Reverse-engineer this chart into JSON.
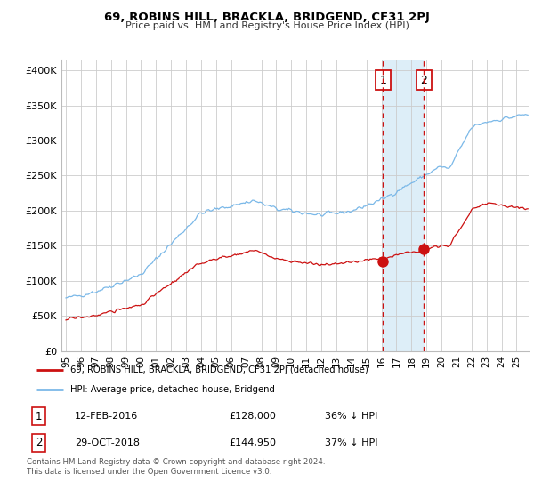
{
  "title": "69, ROBINS HILL, BRACKLA, BRIDGEND, CF31 2PJ",
  "subtitle": "Price paid vs. HM Land Registry's House Price Index (HPI)",
  "ylabel_ticks": [
    "£0",
    "£50K",
    "£100K",
    "£150K",
    "£200K",
    "£250K",
    "£300K",
    "£350K",
    "£400K"
  ],
  "ytick_values": [
    0,
    50000,
    100000,
    150000,
    200000,
    250000,
    300000,
    350000,
    400000
  ],
  "ylim": [
    0,
    415000
  ],
  "xlim_start": 1994.7,
  "xlim_end": 2025.8,
  "hpi_color": "#7ab8e8",
  "price_color": "#cc1111",
  "marker1_date": 2016.1,
  "marker1_price": 128000,
  "marker2_date": 2018.83,
  "marker2_price": 144950,
  "legend_house": "69, ROBINS HILL, BRACKLA, BRIDGEND, CF31 2PJ (detached house)",
  "legend_hpi": "HPI: Average price, detached house, Bridgend",
  "table_row1": [
    "1",
    "12-FEB-2016",
    "£128,000",
    "36% ↓ HPI"
  ],
  "table_row2": [
    "2",
    "29-OCT-2018",
    "£144,950",
    "37% ↓ HPI"
  ],
  "footnote": "Contains HM Land Registry data © Crown copyright and database right 2024.\nThis data is licensed under the Open Government Licence v3.0.",
  "marker_box_color": "#cc1111",
  "shaded_region_color": "#ddeef8",
  "grid_color": "#cccccc",
  "bg_color": "#ffffff"
}
